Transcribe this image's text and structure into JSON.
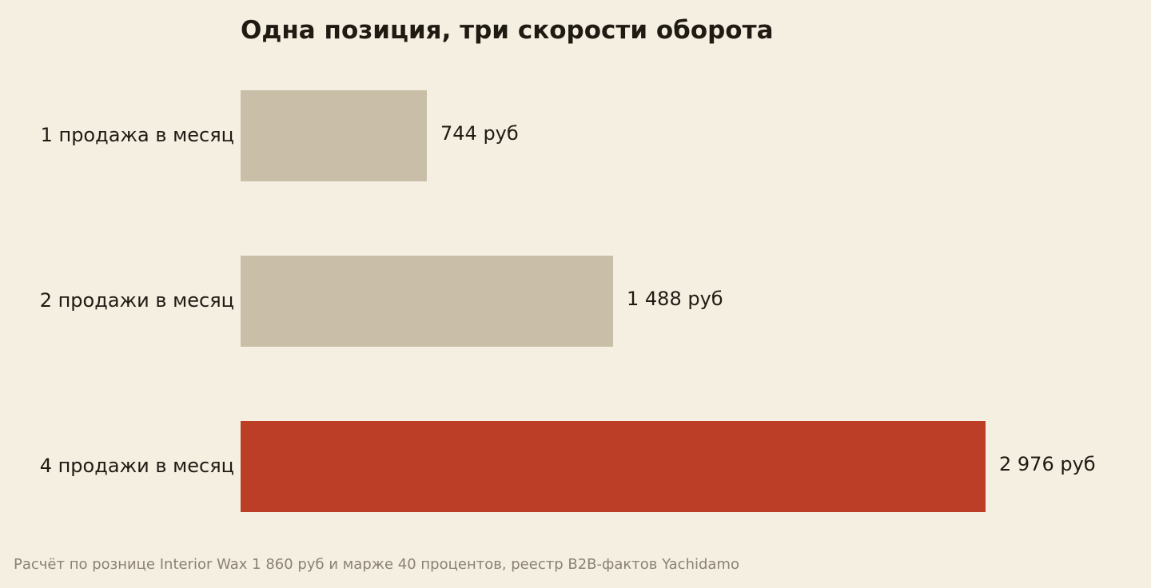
{
  "chart_data": {
    "type": "bar",
    "orientation": "horizontal",
    "title": "Одна позиция, три скорости оборота",
    "categories": [
      "1 продажа в месяц",
      "2 продажи в месяц",
      "4 продажи в месяц"
    ],
    "values": [
      744,
      1488,
      2976
    ],
    "value_labels": [
      "744 руб",
      "1 488 руб",
      "2 976 руб"
    ],
    "highlight_index": 2,
    "xlim": [
      0,
      2976
    ],
    "xlabel": "",
    "ylabel": "",
    "grid": false,
    "colors": {
      "bar": "#c9bfa8",
      "highlight": "#bc3e27",
      "text": "#1f1a12",
      "note": "#8a8273",
      "background": "#f5efe2"
    },
    "note": "Расчёт по рознице Interior Wax 1 860 руб и марже 40 процентов, реестр B2B-фактов Yachidamo"
  }
}
